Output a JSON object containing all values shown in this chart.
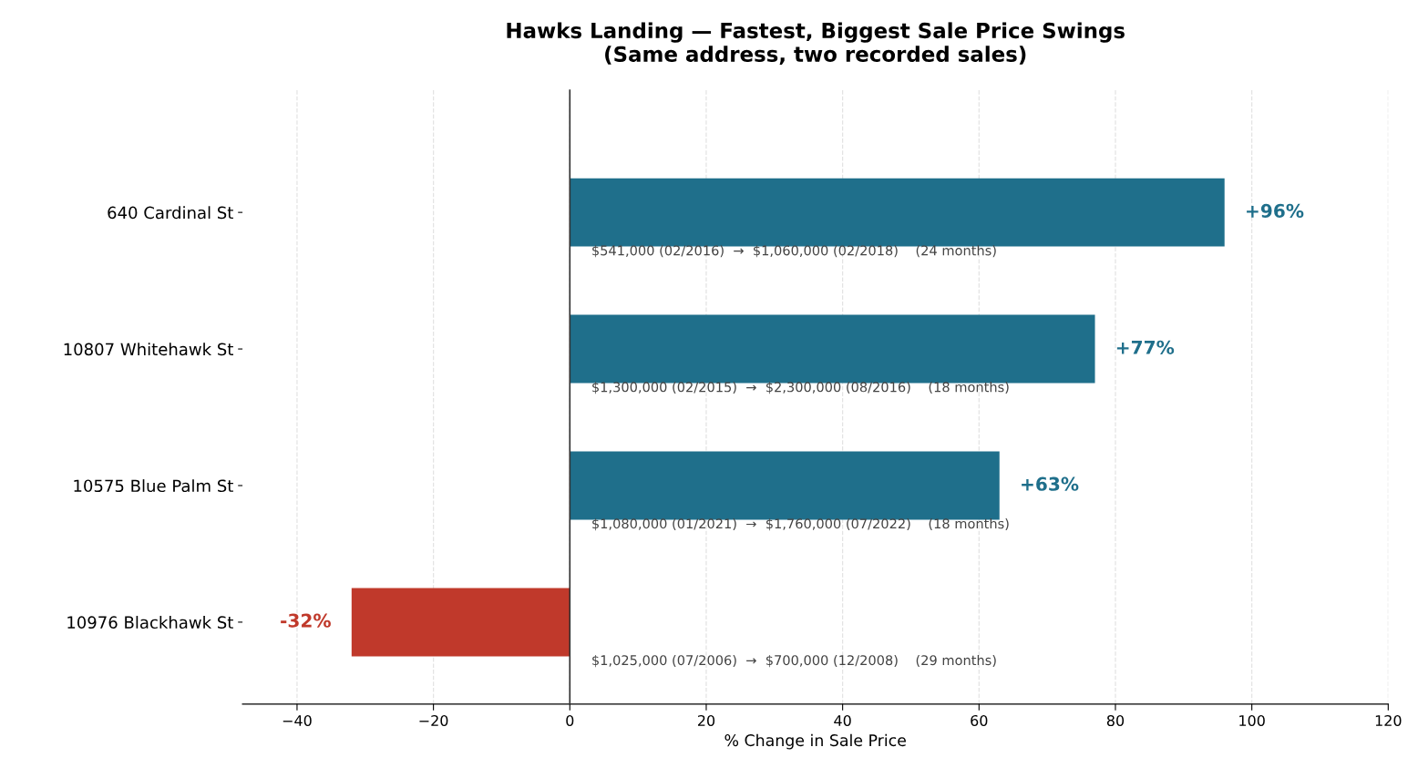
{
  "chart_data": {
    "type": "bar",
    "orientation": "horizontal",
    "title": "Hawks Landing — Fastest, Biggest Sale Price Swings\n(Same address, two recorded sales)",
    "xlabel": "% Change in Sale Price",
    "categories": [
      "640 Cardinal St",
      "10807 Whitehawk St",
      "10575 Blue Palm St",
      "10976 Blackhawk St"
    ],
    "values": [
      96,
      77,
      63,
      -32
    ],
    "colors": [
      "#1f6f8b",
      "#1f6f8b",
      "#1f6f8b",
      "#c0392b"
    ],
    "value_labels": [
      "+96%",
      "+77%",
      "+63%",
      "-32%"
    ],
    "xlim": [
      -48,
      120
    ],
    "xticks": [
      {
        "value": -40,
        "label": "−40"
      },
      {
        "value": -20,
        "label": "−20"
      },
      0,
      20,
      40,
      60,
      80,
      100,
      120
    ],
    "grid": "x",
    "ref_lines": [
      {
        "axis": "x",
        "value": 0,
        "color": "#333333"
      }
    ],
    "annotations": [
      "$541,000 (02/2016)  →  $1,060,000 (02/2018)    (24 months)",
      "$1,300,000 (02/2015)  →  $2,300,000 (08/2016)    (18 months)",
      "$1,080,000 (01/2021)  →  $1,760,000 (07/2022)    (18 months)",
      "$1,025,000 (07/2006)  →  $700,000 (12/2008)    (29 months)"
    ]
  }
}
